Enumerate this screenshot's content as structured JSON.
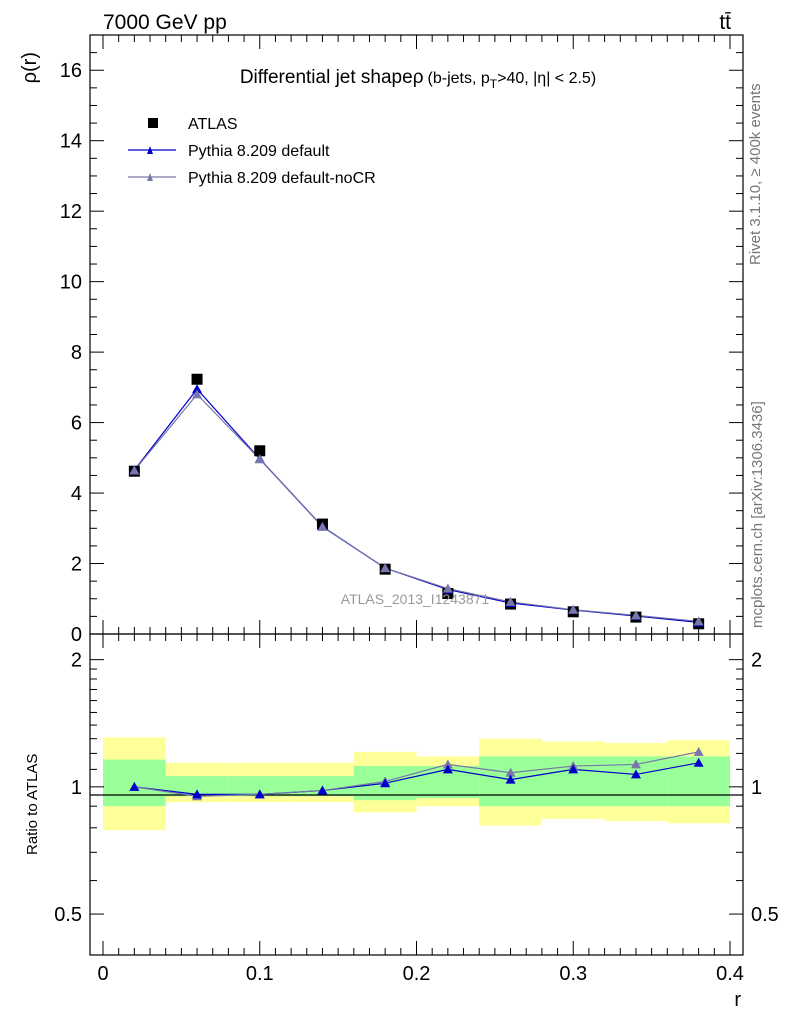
{
  "header": {
    "left": "7000 GeV pp",
    "right": "tt̄"
  },
  "side_labels": {
    "rivet": "Rivet 3.1.10, ≥ 400k events",
    "mcplots": "mcplots.cern.ch [arXiv:1306.3436]"
  },
  "colors": {
    "data": "#000000",
    "default": "#0000cc",
    "noCR": "#7777aa",
    "band_inner": "#99ff99",
    "band_outer": "#ffff99"
  },
  "chart_data": [
    {
      "type": "scatter",
      "title": "Differential jet shape",
      "title_symbol": "ρ",
      "title_suffix": "(b-jets, p",
      "title_sub": "T",
      "title_rest": ">40, |η| < 2.5)",
      "ylabel": "ρ(r)",
      "xlabel": "",
      "ylim": [
        0,
        17
      ],
      "yticks": [
        0,
        2,
        4,
        6,
        8,
        10,
        12,
        14,
        16
      ],
      "xlim": [
        0,
        0.4
      ],
      "watermark": "ATLAS_2013_I1243871",
      "legend_position": "top-left",
      "x": [
        0.02,
        0.06,
        0.1,
        0.14,
        0.18,
        0.22,
        0.26,
        0.3,
        0.34,
        0.38
      ],
      "series": [
        {
          "name": "ATLAS",
          "marker": "square",
          "values": [
            4.62,
            7.23,
            5.2,
            3.12,
            1.84,
            1.15,
            0.85,
            0.63,
            0.48,
            0.29
          ]
        },
        {
          "name": "Pythia 8.209 default",
          "marker": "triangle",
          "values": [
            4.65,
            6.95,
            4.97,
            3.05,
            1.87,
            1.26,
            0.88,
            0.68,
            0.51,
            0.33
          ]
        },
        {
          "name": "Pythia 8.209 default-noCR",
          "marker": "triangle",
          "values": [
            4.64,
            6.8,
            4.96,
            3.04,
            1.87,
            1.29,
            0.91,
            0.69,
            0.53,
            0.36
          ]
        }
      ]
    },
    {
      "type": "scatter",
      "ylabel": "Ratio to ATLAS",
      "xlabel": "r",
      "ylim": [
        0.4,
        2.3
      ],
      "yscale": "log",
      "yticks": [
        0.5,
        1,
        2
      ],
      "xlim": [
        0,
        0.4
      ],
      "xticks": [
        0,
        0.1,
        0.2,
        0.3,
        0.4
      ],
      "xtick_labels": [
        "0",
        "0.1",
        "0.2",
        "0.3",
        "0.4"
      ],
      "bins": [
        [
          0,
          0.04
        ],
        [
          0.04,
          0.08
        ],
        [
          0.08,
          0.12
        ],
        [
          0.12,
          0.16
        ],
        [
          0.16,
          0.2
        ],
        [
          0.2,
          0.24
        ],
        [
          0.24,
          0.28
        ],
        [
          0.28,
          0.32
        ],
        [
          0.32,
          0.36
        ],
        [
          0.36,
          0.4
        ]
      ],
      "band_inner": [
        [
          0.9,
          1.16
        ],
        [
          0.95,
          1.06
        ],
        [
          0.95,
          1.06
        ],
        [
          0.95,
          1.06
        ],
        [
          0.93,
          1.12
        ],
        [
          0.94,
          1.12
        ],
        [
          0.9,
          1.18
        ],
        [
          0.9,
          1.18
        ],
        [
          0.9,
          1.18
        ],
        [
          0.9,
          1.18
        ]
      ],
      "band_outer": [
        [
          0.79,
          1.31
        ],
        [
          0.92,
          1.14
        ],
        [
          0.92,
          1.14
        ],
        [
          0.92,
          1.14
        ],
        [
          0.87,
          1.21
        ],
        [
          0.9,
          1.18
        ],
        [
          0.81,
          1.3
        ],
        [
          0.84,
          1.28
        ],
        [
          0.83,
          1.27
        ],
        [
          0.82,
          1.29
        ]
      ],
      "x": [
        0.02,
        0.06,
        0.1,
        0.14,
        0.18,
        0.22,
        0.26,
        0.3,
        0.34,
        0.38
      ],
      "series": [
        {
          "name": "Pythia 8.209 default",
          "values": [
            1.0,
            0.96,
            0.96,
            0.98,
            1.02,
            1.1,
            1.04,
            1.1,
            1.07,
            1.14
          ]
        },
        {
          "name": "Pythia 8.209 default-noCR",
          "values": [
            1.0,
            0.95,
            0.96,
            0.98,
            1.03,
            1.13,
            1.08,
            1.12,
            1.13,
            1.21
          ]
        }
      ]
    }
  ]
}
